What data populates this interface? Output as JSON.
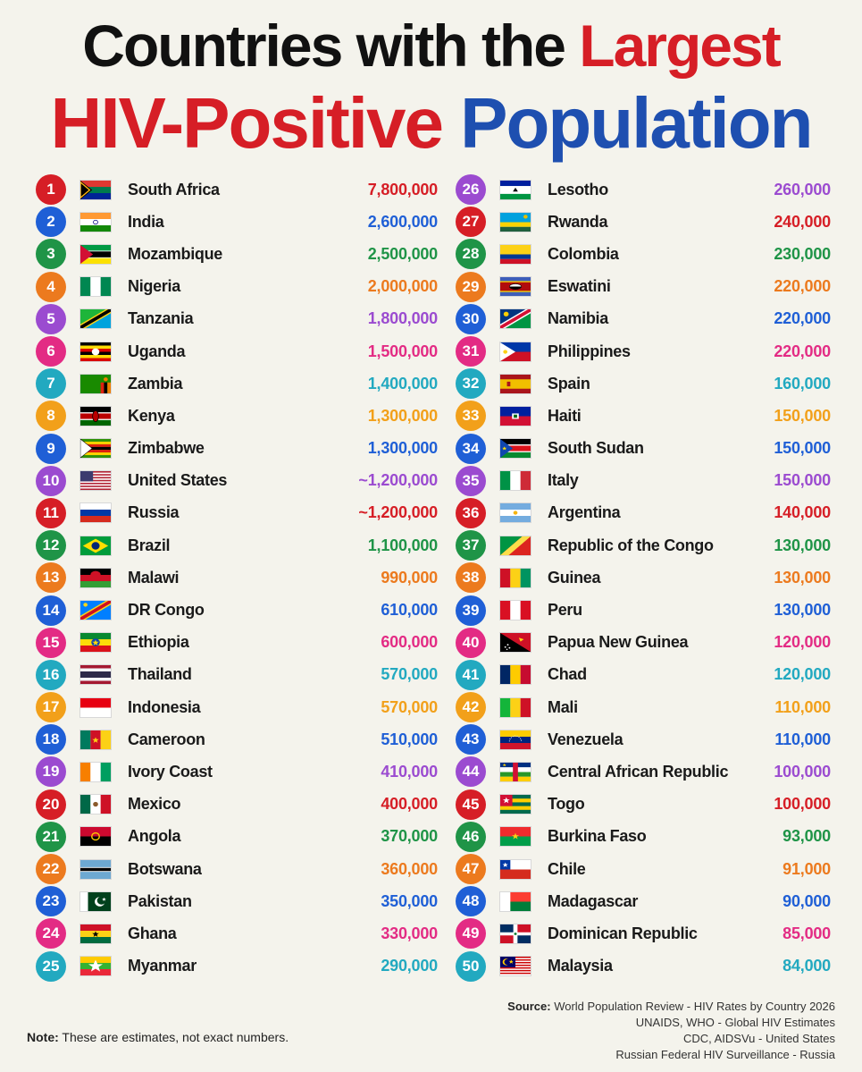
{
  "title": {
    "line1_a": "Countries with the ",
    "line1_b": "Largest",
    "line2_a": "HIV-Positive ",
    "line2_b": "Population"
  },
  "colors": {
    "red": "#d61e26",
    "blue": "#1e4fb0",
    "green": "#1f9447",
    "orange": "#ec7a1e",
    "purple": "#9b4bd0",
    "pink": "#e32b84",
    "teal": "#22a9c0",
    "gold": "#f2a01a",
    "navy": "#1f5fd6"
  },
  "countries": [
    {
      "rank": "1",
      "name": "South Africa",
      "value": "7,800,000",
      "color": "#d61e26",
      "flag": "south-africa-flag"
    },
    {
      "rank": "2",
      "name": "India",
      "value": "2,600,000",
      "color": "#1f5fd6",
      "flag": "india-flag"
    },
    {
      "rank": "3",
      "name": "Mozambique",
      "value": "2,500,000",
      "color": "#1f9447",
      "flag": "mozambique-flag"
    },
    {
      "rank": "4",
      "name": "Nigeria",
      "value": "2,000,000",
      "color": "#ec7a1e",
      "flag": "nigeria-flag"
    },
    {
      "rank": "5",
      "name": "Tanzania",
      "value": "1,800,000",
      "color": "#9b4bd0",
      "flag": "tanzania-flag"
    },
    {
      "rank": "6",
      "name": "Uganda",
      "value": "1,500,000",
      "color": "#e32b84",
      "flag": "uganda-flag"
    },
    {
      "rank": "7",
      "name": "Zambia",
      "value": "1,400,000",
      "color": "#22a9c0",
      "flag": "zambia-flag"
    },
    {
      "rank": "8",
      "name": "Kenya",
      "value": "1,300,000",
      "color": "#f2a01a",
      "flag": "kenya-flag"
    },
    {
      "rank": "9",
      "name": "Zimbabwe",
      "value": "1,300,000",
      "color": "#1f5fd6",
      "flag": "zimbabwe-flag"
    },
    {
      "rank": "10",
      "name": "United States",
      "value": "~1,200,000",
      "color": "#9b4bd0",
      "flag": "united-states-flag"
    },
    {
      "rank": "11",
      "name": "Russia",
      "value": "~1,200,000",
      "color": "#d61e26",
      "flag": "russia-flag"
    },
    {
      "rank": "12",
      "name": "Brazil",
      "value": "1,100,000",
      "color": "#1f9447",
      "flag": "brazil-flag"
    },
    {
      "rank": "13",
      "name": "Malawi",
      "value": "990,000",
      "color": "#ec7a1e",
      "flag": "malawi-flag"
    },
    {
      "rank": "14",
      "name": "DR Congo",
      "value": "610,000",
      "color": "#1f5fd6",
      "flag": "dr-congo-flag"
    },
    {
      "rank": "15",
      "name": "Ethiopia",
      "value": "600,000",
      "color": "#e32b84",
      "flag": "ethiopia-flag"
    },
    {
      "rank": "16",
      "name": "Thailand",
      "value": "570,000",
      "color": "#22a9c0",
      "flag": "thailand-flag"
    },
    {
      "rank": "17",
      "name": "Indonesia",
      "value": "570,000",
      "color": "#f2a01a",
      "flag": "indonesia-flag"
    },
    {
      "rank": "18",
      "name": "Cameroon",
      "value": "510,000",
      "color": "#1f5fd6",
      "flag": "cameroon-flag"
    },
    {
      "rank": "19",
      "name": "Ivory Coast",
      "value": "410,000",
      "color": "#9b4bd0",
      "flag": "ivory-coast-flag"
    },
    {
      "rank": "20",
      "name": "Mexico",
      "value": "400,000",
      "color": "#d61e26",
      "flag": "mexico-flag"
    },
    {
      "rank": "21",
      "name": "Angola",
      "value": "370,000",
      "color": "#1f9447",
      "flag": "angola-flag"
    },
    {
      "rank": "22",
      "name": "Botswana",
      "value": "360,000",
      "color": "#ec7a1e",
      "flag": "botswana-flag"
    },
    {
      "rank": "23",
      "name": "Pakistan",
      "value": "350,000",
      "color": "#1f5fd6",
      "flag": "pakistan-flag"
    },
    {
      "rank": "24",
      "name": "Ghana",
      "value": "330,000",
      "color": "#e32b84",
      "flag": "ghana-flag"
    },
    {
      "rank": "25",
      "name": "Myanmar",
      "value": "290,000",
      "color": "#22a9c0",
      "flag": "myanmar-flag"
    },
    {
      "rank": "26",
      "name": "Lesotho",
      "value": "260,000",
      "color": "#9b4bd0",
      "flag": "lesotho-flag"
    },
    {
      "rank": "27",
      "name": "Rwanda",
      "value": "240,000",
      "color": "#d61e26",
      "flag": "rwanda-flag"
    },
    {
      "rank": "28",
      "name": "Colombia",
      "value": "230,000",
      "color": "#1f9447",
      "flag": "colombia-flag"
    },
    {
      "rank": "29",
      "name": "Eswatini",
      "value": "220,000",
      "color": "#ec7a1e",
      "flag": "eswatini-flag"
    },
    {
      "rank": "30",
      "name": "Namibia",
      "value": "220,000",
      "color": "#1f5fd6",
      "flag": "namibia-flag"
    },
    {
      "rank": "31",
      "name": "Philippines",
      "value": "220,000",
      "color": "#e32b84",
      "flag": "philippines-flag"
    },
    {
      "rank": "32",
      "name": "Spain",
      "value": "160,000",
      "color": "#22a9c0",
      "flag": "spain-flag"
    },
    {
      "rank": "33",
      "name": "Haiti",
      "value": "150,000",
      "color": "#f2a01a",
      "flag": "haiti-flag"
    },
    {
      "rank": "34",
      "name": "South Sudan",
      "value": "150,000",
      "color": "#1f5fd6",
      "flag": "south-sudan-flag"
    },
    {
      "rank": "35",
      "name": "Italy",
      "value": "150,000",
      "color": "#9b4bd0",
      "flag": "italy-flag"
    },
    {
      "rank": "36",
      "name": "Argentina",
      "value": "140,000",
      "color": "#d61e26",
      "flag": "argentina-flag"
    },
    {
      "rank": "37",
      "name": "Republic of the Congo",
      "value": "130,000",
      "color": "#1f9447",
      "flag": "republic-of-the-congo-flag"
    },
    {
      "rank": "38",
      "name": "Guinea",
      "value": "130,000",
      "color": "#ec7a1e",
      "flag": "guinea-flag"
    },
    {
      "rank": "39",
      "name": "Peru",
      "value": "130,000",
      "color": "#1f5fd6",
      "flag": "peru-flag"
    },
    {
      "rank": "40",
      "name": "Papua New Guinea",
      "value": "120,000",
      "color": "#e32b84",
      "flag": "papua-new-guinea-flag"
    },
    {
      "rank": "41",
      "name": "Chad",
      "value": "120,000",
      "color": "#22a9c0",
      "flag": "chad-flag"
    },
    {
      "rank": "42",
      "name": "Mali",
      "value": "110,000",
      "color": "#f2a01a",
      "flag": "mali-flag"
    },
    {
      "rank": "43",
      "name": "Venezuela",
      "value": "110,000",
      "color": "#1f5fd6",
      "flag": "venezuela-flag"
    },
    {
      "rank": "44",
      "name": "Central African Republic",
      "value": "100,000",
      "color": "#9b4bd0",
      "flag": "central-african-republic-flag"
    },
    {
      "rank": "45",
      "name": "Togo",
      "value": "100,000",
      "color": "#d61e26",
      "flag": "togo-flag"
    },
    {
      "rank": "46",
      "name": "Burkina Faso",
      "value": "93,000",
      "color": "#1f9447",
      "flag": "burkina-faso-flag"
    },
    {
      "rank": "47",
      "name": "Chile",
      "value": "91,000",
      "color": "#ec7a1e",
      "flag": "chile-flag"
    },
    {
      "rank": "48",
      "name": "Madagascar",
      "value": "90,000",
      "color": "#1f5fd6",
      "flag": "madagascar-flag"
    },
    {
      "rank": "49",
      "name": "Dominican Republic",
      "value": "85,000",
      "color": "#e32b84",
      "flag": "dominican-republic-flag"
    },
    {
      "rank": "50",
      "name": "Malaysia",
      "value": "84,000",
      "color": "#22a9c0",
      "flag": "malaysia-flag"
    }
  ],
  "note": {
    "label": "Note:",
    "text": " These are estimates, not exact numbers."
  },
  "source": {
    "label": "Source:",
    "line1": " World Population Review - HIV Rates by Country 2026",
    "line2": "UNAIDS, WHO - Global HIV Estimates",
    "line3": "CDC, AIDSVu - United States",
    "line4": "Russian Federal HIV Surveillance - Russia"
  }
}
